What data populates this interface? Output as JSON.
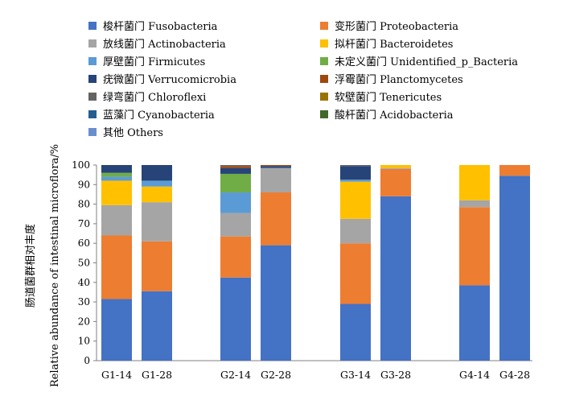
{
  "chart_data": {
    "type": "bar",
    "stacked": true,
    "ylabel_cn": "肠道菌群相对丰度",
    "ylabel_en": "Relative abundance of intestinal microflora/%",
    "ylim": [
      0,
      100
    ],
    "yticks": [
      0,
      10,
      20,
      30,
      40,
      50,
      60,
      70,
      80,
      90,
      100
    ],
    "grid": false,
    "legend_position": "top",
    "categories": [
      "G1-14",
      "G1-28",
      "G2-14",
      "G2-28",
      "G3-14",
      "G3-28",
      "G4-14",
      "G4-28"
    ],
    "series": [
      {
        "name": "梭杆菌门 Fusobacteria",
        "color": "#4472C4",
        "values": [
          31.5,
          35.5,
          42.5,
          59.0,
          29.0,
          84.0,
          38.5,
          94.5
        ]
      },
      {
        "name": "变形菌门 Proteobacteria",
        "color": "#ED7D31",
        "values": [
          32.5,
          25.5,
          21.0,
          27.0,
          31.0,
          14.0,
          40.0,
          5.5
        ]
      },
      {
        "name": "放线菌门 Actinobacteria",
        "color": "#A5A5A5",
        "values": [
          15.5,
          20.0,
          12.0,
          12.5,
          12.5,
          0.5,
          3.5,
          0
        ]
      },
      {
        "name": "拟杆菌门 Bacteroidetes",
        "color": "#FFC000",
        "values": [
          12.5,
          8.0,
          0,
          0,
          19.0,
          1.5,
          18.0,
          0
        ]
      },
      {
        "name": "厚壁菌门 Firmicutes",
        "color": "#5B9BD5",
        "values": [
          2.0,
          3.0,
          10.5,
          0,
          1.0,
          0,
          0,
          0
        ]
      },
      {
        "name": "未定义菌门 Unidentified_p_Bacteria",
        "color": "#70AD47",
        "values": [
          2.0,
          0,
          9.5,
          0,
          0,
          0,
          0,
          0
        ]
      },
      {
        "name": "疣微菌门 Verrucomicrobia",
        "color": "#264478",
        "values": [
          4.0,
          8.0,
          3.0,
          1.0,
          7.0,
          0,
          0,
          0
        ]
      },
      {
        "name": "浮霉菌门 Planctomycetes",
        "color": "#9E480E",
        "values": [
          0,
          0,
          1.0,
          0.5,
          0,
          0,
          0,
          0
        ]
      },
      {
        "name": "绿弯菌门 Chloroflexi",
        "color": "#636363",
        "values": [
          0,
          0,
          0.5,
          0,
          0.5,
          0,
          0,
          0
        ]
      },
      {
        "name": "软壁菌门 Tenericutes",
        "color": "#997300",
        "values": [
          0,
          0,
          0,
          0,
          0,
          0,
          0,
          0
        ]
      },
      {
        "name": "蓝藻门 Cyanobacteria",
        "color": "#255E91",
        "values": [
          0,
          0,
          0,
          0,
          0,
          0,
          0,
          0
        ]
      },
      {
        "name": "酸杆菌门 Acidobacteria",
        "color": "#43682B",
        "values": [
          0,
          0,
          0,
          0,
          0,
          0,
          0,
          0
        ]
      },
      {
        "name": "其他 Others",
        "color": "#698ED0",
        "values": [
          0,
          0,
          0,
          0,
          0,
          0,
          0,
          0
        ]
      }
    ]
  }
}
